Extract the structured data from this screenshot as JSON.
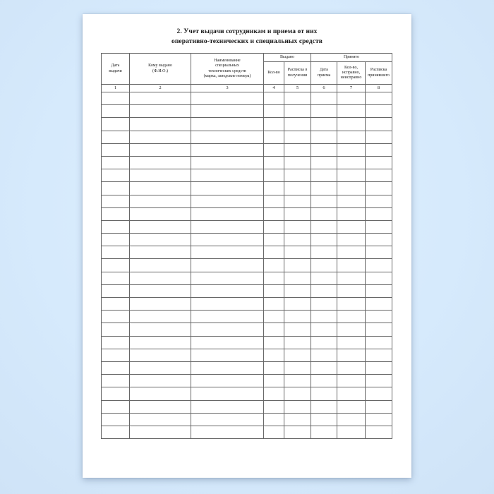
{
  "page": {
    "title": "2. Учет выдачи сотрудникам и приема от них\nоперативно-технических и специальных средств"
  },
  "table": {
    "group_headers": [
      {
        "label": "Выдано"
      },
      {
        "label": "Принято"
      }
    ],
    "columns": [
      {
        "label": "Дата\nвыдачи",
        "number": "1"
      },
      {
        "label": "Кому выдано\n(Ф.И.О.)",
        "number": "2"
      },
      {
        "label": "Наименование\nспециальных\nтехнических средств\n(марка, заводские номера)",
        "number": "3"
      },
      {
        "label": "Кол-во",
        "number": "4"
      },
      {
        "label": "Расписка в\nполучении",
        "number": "5"
      },
      {
        "label": "Дата\nприема",
        "number": "6"
      },
      {
        "label": "Кол-во,\nисправно,\nнеисправно",
        "number": "7"
      },
      {
        "label": "Расписка\nпринявшего",
        "number": "8"
      }
    ],
    "empty_row_count": 27
  },
  "colors": {
    "background_blue": "#d6eafc",
    "page_white": "#ffffff",
    "table_border": "#666666",
    "text": "#1a1a1a"
  }
}
